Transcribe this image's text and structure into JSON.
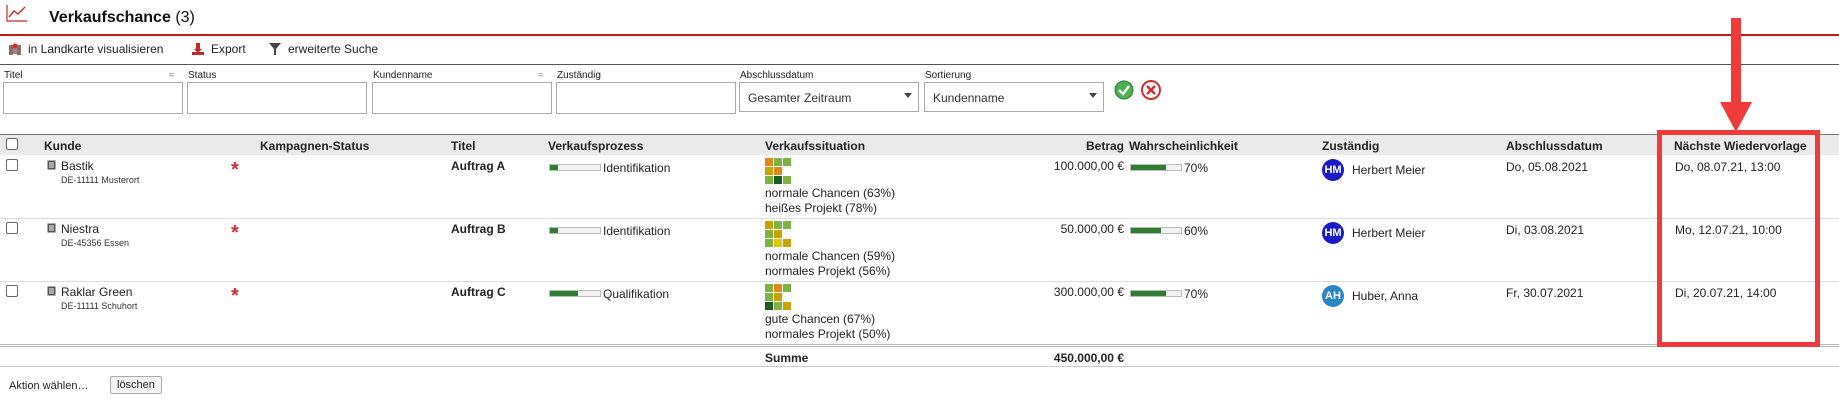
{
  "header": {
    "title": "Verkaufschance",
    "count": "(3)"
  },
  "toolbar": {
    "map_label": "in Landkarte visualisieren",
    "export_label": "Export",
    "search_label": "erweiterte Suche"
  },
  "filters": {
    "titel_label": "Titel",
    "status_label": "Status",
    "kunde_label": "Kundenname",
    "zust_label": "Zuständig",
    "abschluss_label": "Abschlussdatum",
    "abschluss_value": "Gesamter Zeitraum",
    "sort_label": "Sortierung",
    "sort_value": "Kundenname",
    "approx": "≈"
  },
  "table": {
    "headers": {
      "kunde": "Kunde",
      "kampagne": "Kampagnen-Status",
      "titel": "Titel",
      "prozess": "Verkaufsprozess",
      "situation": "Verkaufssituation",
      "betrag": "Betrag",
      "wahrsch": "Wahrscheinlichkeit",
      "zust": "Zuständig",
      "abschluss": "Abschlussdatum",
      "wiedervorlage": "Nächste Wiedervorlage"
    },
    "rows": [
      {
        "kunde": "Bastik",
        "adresse": "DE-11111 Musterort",
        "star": "*",
        "titel": "Auftrag A",
        "prozess": "Identifikation",
        "prozess_progress": 0.15,
        "situation1": "normale Chancen (63%)",
        "situation2": "heißes Projekt (78%)",
        "betrag": "100.000,00 €",
        "wahrsch": "70%",
        "wahrsch_value": 0.7,
        "initials": "HM",
        "avatar_color": "#1a1ac8",
        "zust": "Herbert Meier",
        "abschluss": "Do, 05.08.2021",
        "wiedervorlage": "Do, 08.07.21, 13:00",
        "squares": [
          "#e08a1e",
          "#7cb342",
          "#7cb342",
          "#c8a400",
          "#e08a1e",
          "#7cb342",
          "#1b5e20",
          "#7cb342"
        ]
      },
      {
        "kunde": "Niestra",
        "adresse": "DE-45356 Essen",
        "star": "*",
        "titel": "Auftrag B",
        "prozess": "Identifikation",
        "prozess_progress": 0.15,
        "situation1": "normale Chancen (59%)",
        "situation2": "normales Projekt (56%)",
        "betrag": "50.000,00 €",
        "wahrsch": "60%",
        "wahrsch_value": 0.6,
        "initials": "HM",
        "avatar_color": "#1a1ac8",
        "zust": "Herbert Meier",
        "abschluss": "Di, 03.08.2021",
        "wiedervorlage": "Mo, 12.07.21, 10:00",
        "squares": [
          "#c8a400",
          "#7cb342",
          "#7cb342",
          "#7cb342",
          "#c8a400",
          "#7cb342",
          "#e0c800",
          "#c8a400"
        ]
      },
      {
        "kunde": "Raklar Green",
        "adresse": "DE-11111 Schuhort",
        "star": "*",
        "titel": "Auftrag C",
        "prozess": "Qualifikation",
        "prozess_progress": 0.55,
        "situation1": "gute Chancen (67%)",
        "situation2": "normales Projekt (50%)",
        "betrag": "300.000,00 €",
        "wahrsch": "70%",
        "wahrsch_value": 0.7,
        "initials": "AH",
        "avatar_color": "#2a86c2",
        "zust": "Huber, Anna",
        "abschluss": "Fr, 30.07.2021",
        "wiedervorlage": "Di, 20.07.21, 14:00",
        "squares": [
          "#7cb342",
          "#e08a1e",
          "#7cb342",
          "#7cb342",
          "#c8a400",
          "#1b5e20",
          "#7cb342",
          "#c8a400"
        ]
      }
    ],
    "sum_label": "Summe",
    "sum_value": "450.000,00 €"
  },
  "footer": {
    "action_label": "Aktion wählen…",
    "delete_label": "löschen"
  }
}
